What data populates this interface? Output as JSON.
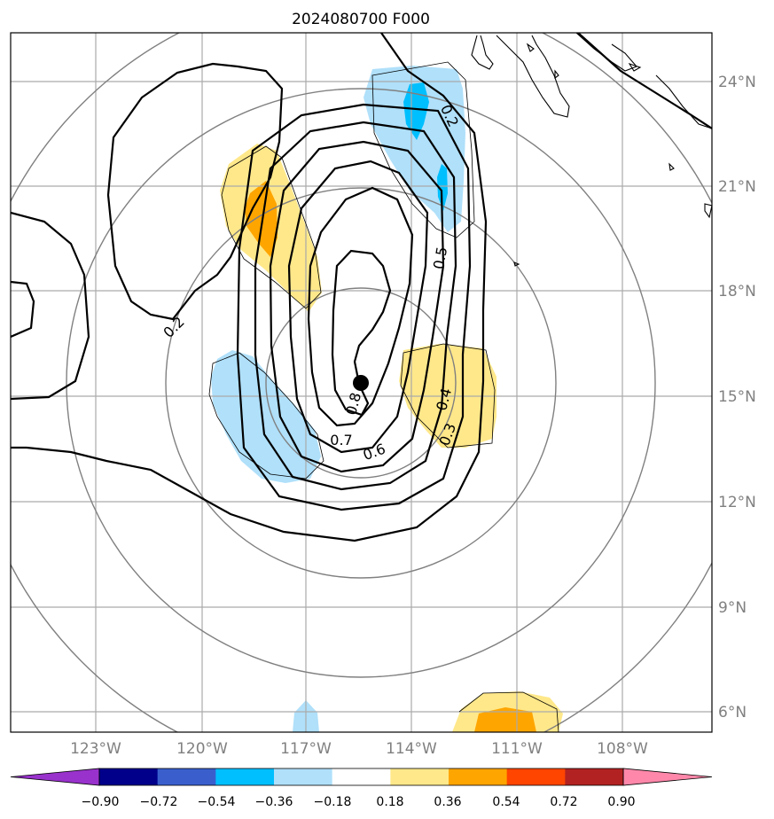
{
  "title": "2024080700 F000",
  "map": {
    "lon_ticks": [
      "123°W",
      "120°W",
      "117°W",
      "114°W",
      "111°W",
      "108°W"
    ],
    "lat_ticks": [
      "24°N",
      "21°N",
      "18°N",
      "15°N",
      "12°N",
      "9°N",
      "6°N"
    ],
    "storm_center": {
      "lon": -115.5,
      "lat": 15.4
    }
  },
  "contours": {
    "levels": [
      "0.2",
      "0.3",
      "0.4",
      "0.5",
      "0.6",
      "0.7",
      "0.8"
    ],
    "labels": [
      "0.2",
      "0.2",
      "0.5",
      "0.4",
      "0.3",
      "0.6",
      "0.7",
      "0.8"
    ]
  },
  "colorbar": {
    "tick_labels": [
      "−0.90",
      "−0.72",
      "−0.54",
      "−0.36",
      "−0.18",
      "0.18",
      "0.36",
      "0.54",
      "0.72",
      "0.90"
    ],
    "colors": [
      "#9932cc",
      "#00008b",
      "#3a5fcd",
      "#00bfff",
      "#b0e0fa",
      "#ffffff",
      "#ffe88a",
      "#ffa500",
      "#ff4500",
      "#b22222",
      "#ff88aa"
    ]
  }
}
